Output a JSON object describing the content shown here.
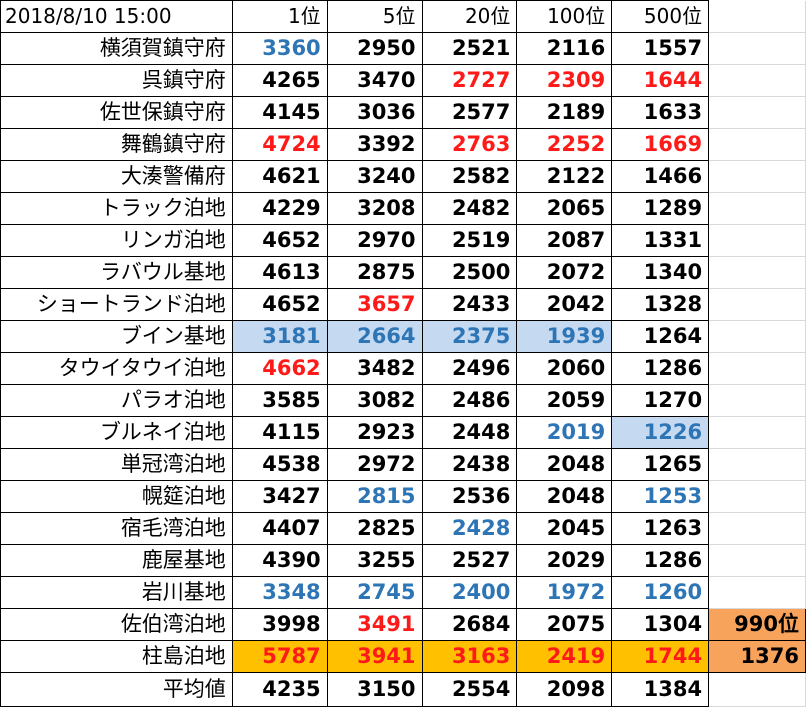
{
  "header": {
    "timestamp": "2018/8/10 15:00",
    "cols": [
      "1位",
      "5位",
      "20位",
      "100位",
      "500位"
    ]
  },
  "colors": {
    "red_text": "#ff1a1a",
    "blue_text": "#2e75b6",
    "blue_fill": "#c5d9f1",
    "orange_fill": "#ffc000",
    "extra_fill": "#f7a35c"
  },
  "rows": [
    {
      "name": "横須賀鎮守府",
      "values": [
        "3360",
        "2950",
        "2521",
        "2116",
        "1557"
      ],
      "text_colors": [
        "blue",
        "",
        "",
        "",
        ""
      ],
      "fills": [
        "",
        "",
        "",
        "",
        ""
      ],
      "extra": ""
    },
    {
      "name": "呉鎮守府",
      "values": [
        "4265",
        "3470",
        "2727",
        "2309",
        "1644"
      ],
      "text_colors": [
        "",
        "",
        "red",
        "red",
        "red"
      ],
      "fills": [
        "",
        "",
        "",
        "",
        ""
      ],
      "extra": ""
    },
    {
      "name": "佐世保鎮守府",
      "values": [
        "4145",
        "3036",
        "2577",
        "2189",
        "1633"
      ],
      "text_colors": [
        "",
        "",
        "",
        "",
        ""
      ],
      "fills": [
        "",
        "",
        "",
        "",
        ""
      ],
      "extra": ""
    },
    {
      "name": "舞鶴鎮守府",
      "values": [
        "4724",
        "3392",
        "2763",
        "2252",
        "1669"
      ],
      "text_colors": [
        "red",
        "",
        "red",
        "red",
        "red"
      ],
      "fills": [
        "",
        "",
        "",
        "",
        ""
      ],
      "extra": ""
    },
    {
      "name": "大湊警備府",
      "values": [
        "4621",
        "3240",
        "2582",
        "2122",
        "1466"
      ],
      "text_colors": [
        "",
        "",
        "",
        "",
        ""
      ],
      "fills": [
        "",
        "",
        "",
        "",
        ""
      ],
      "extra": ""
    },
    {
      "name": "トラック泊地",
      "values": [
        "4229",
        "3208",
        "2482",
        "2065",
        "1289"
      ],
      "text_colors": [
        "",
        "",
        "",
        "",
        ""
      ],
      "fills": [
        "",
        "",
        "",
        "",
        ""
      ],
      "extra": ""
    },
    {
      "name": "リンガ泊地",
      "values": [
        "4652",
        "2970",
        "2519",
        "2087",
        "1331"
      ],
      "text_colors": [
        "",
        "",
        "",
        "",
        ""
      ],
      "fills": [
        "",
        "",
        "",
        "",
        ""
      ],
      "extra": ""
    },
    {
      "name": "ラバウル基地",
      "values": [
        "4613",
        "2875",
        "2500",
        "2072",
        "1340"
      ],
      "text_colors": [
        "",
        "",
        "",
        "",
        ""
      ],
      "fills": [
        "",
        "",
        "",
        "",
        ""
      ],
      "extra": ""
    },
    {
      "name": "ショートランド泊地",
      "values": [
        "4652",
        "3657",
        "2433",
        "2042",
        "1328"
      ],
      "text_colors": [
        "",
        "red",
        "",
        "",
        ""
      ],
      "fills": [
        "",
        "",
        "",
        "",
        ""
      ],
      "extra": ""
    },
    {
      "name": "ブイン基地",
      "values": [
        "3181",
        "2664",
        "2375",
        "1939",
        "1264"
      ],
      "text_colors": [
        "blue",
        "blue",
        "blue",
        "blue",
        ""
      ],
      "fills": [
        "blue",
        "blue",
        "blue",
        "blue",
        ""
      ],
      "extra": ""
    },
    {
      "name": "タウイタウイ泊地",
      "values": [
        "4662",
        "3482",
        "2496",
        "2060",
        "1286"
      ],
      "text_colors": [
        "red",
        "",
        "",
        "",
        ""
      ],
      "fills": [
        "",
        "",
        "",
        "",
        ""
      ],
      "extra": ""
    },
    {
      "name": "パラオ泊地",
      "values": [
        "3585",
        "3082",
        "2486",
        "2059",
        "1270"
      ],
      "text_colors": [
        "",
        "",
        "",
        "",
        ""
      ],
      "fills": [
        "",
        "",
        "",
        "",
        ""
      ],
      "extra": ""
    },
    {
      "name": "ブルネイ泊地",
      "values": [
        "4115",
        "2923",
        "2448",
        "2019",
        "1226"
      ],
      "text_colors": [
        "",
        "",
        "",
        "blue",
        "blue"
      ],
      "fills": [
        "",
        "",
        "",
        "",
        "blue"
      ],
      "extra": ""
    },
    {
      "name": "単冠湾泊地",
      "values": [
        "4538",
        "2972",
        "2438",
        "2048",
        "1265"
      ],
      "text_colors": [
        "",
        "",
        "",
        "",
        ""
      ],
      "fills": [
        "",
        "",
        "",
        "",
        ""
      ],
      "extra": ""
    },
    {
      "name": "幌筵泊地",
      "values": [
        "3427",
        "2815",
        "2536",
        "2048",
        "1253"
      ],
      "text_colors": [
        "",
        "blue",
        "",
        "",
        "blue"
      ],
      "fills": [
        "",
        "",
        "",
        "",
        ""
      ],
      "extra": ""
    },
    {
      "name": "宿毛湾泊地",
      "values": [
        "4407",
        "2825",
        "2428",
        "2045",
        "1263"
      ],
      "text_colors": [
        "",
        "",
        "blue",
        "",
        ""
      ],
      "fills": [
        "",
        "",
        "",
        "",
        ""
      ],
      "extra": ""
    },
    {
      "name": "鹿屋基地",
      "values": [
        "4390",
        "3255",
        "2527",
        "2029",
        "1286"
      ],
      "text_colors": [
        "",
        "",
        "",
        "",
        ""
      ],
      "fills": [
        "",
        "",
        "",
        "",
        ""
      ],
      "extra": ""
    },
    {
      "name": "岩川基地",
      "values": [
        "3348",
        "2745",
        "2400",
        "1972",
        "1260"
      ],
      "text_colors": [
        "blue",
        "blue",
        "blue",
        "blue",
        "blue"
      ],
      "fills": [
        "",
        "",
        "",
        "",
        ""
      ],
      "extra": ""
    },
    {
      "name": "佐伯湾泊地",
      "values": [
        "3998",
        "3491",
        "2684",
        "2075",
        "1304"
      ],
      "text_colors": [
        "",
        "red",
        "",
        "",
        ""
      ],
      "fills": [
        "",
        "",
        "",
        "",
        ""
      ],
      "extra": "990位"
    },
    {
      "name": "柱島泊地",
      "values": [
        "5787",
        "3941",
        "3163",
        "2419",
        "1744"
      ],
      "text_colors": [
        "red",
        "red",
        "red",
        "red",
        "red"
      ],
      "fills": [
        "orange",
        "orange",
        "orange",
        "orange",
        "orange"
      ],
      "extra": "1376"
    }
  ],
  "average": {
    "name": "平均値",
    "values": [
      "4235",
      "3150",
      "2554",
      "2098",
      "1384"
    ]
  }
}
